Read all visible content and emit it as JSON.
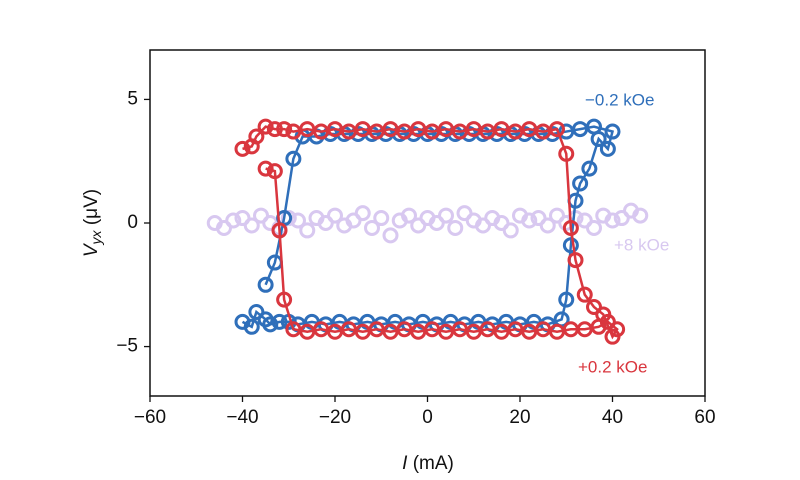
{
  "chart_data": {
    "type": "scatter",
    "x_label": {
      "symbol": "I",
      "unit": "(mA)"
    },
    "y_label": {
      "symbol": "V",
      "subscript": "yx",
      "unit": "(μV)"
    },
    "xlim": [
      -60,
      60
    ],
    "xticks": [
      {
        "value": -60,
        "label": "−60"
      },
      {
        "value": -40,
        "label": "−40"
      },
      {
        "value": -20,
        "label": "−20"
      },
      0,
      20,
      40,
      60
    ],
    "ylim": [
      -7,
      7
    ],
    "yticks": [
      {
        "value": -5,
        "label": "−5"
      },
      0,
      5
    ],
    "series": [
      {
        "name": "−0.2 kOe",
        "color": "#2f6fba",
        "line": true,
        "x": [
          -40,
          -38,
          -37,
          -35,
          -34,
          -32,
          -30,
          -28,
          -25,
          -22,
          -19,
          -16,
          -13,
          -10,
          -7,
          -4,
          -1,
          2,
          5,
          8,
          11,
          14,
          17,
          20,
          23,
          26,
          29,
          30,
          31,
          32,
          33,
          35,
          37,
          39,
          40,
          36,
          33,
          30,
          27,
          24,
          21,
          18,
          15,
          12,
          9,
          6,
          3,
          0,
          -3,
          -6,
          -9,
          -12,
          -15,
          -18,
          -21,
          -24,
          -27,
          -29,
          -31,
          -33,
          -35
        ],
        "values": [
          -4.0,
          -4.2,
          -3.6,
          -3.9,
          -4.1,
          -4.0,
          -4.0,
          -4.1,
          -4.0,
          -4.1,
          -4.0,
          -4.1,
          -4.0,
          -4.1,
          -4.0,
          -4.1,
          -4.0,
          -4.1,
          -4.0,
          -4.1,
          -4.0,
          -4.1,
          -4.0,
          -4.1,
          -4.0,
          -4.1,
          -3.9,
          -3.1,
          -0.9,
          0.9,
          1.6,
          2.2,
          3.4,
          3.0,
          3.7,
          3.9,
          3.8,
          3.7,
          3.6,
          3.6,
          3.6,
          3.6,
          3.6,
          3.6,
          3.6,
          3.6,
          3.6,
          3.6,
          3.6,
          3.6,
          3.6,
          3.6,
          3.6,
          3.6,
          3.6,
          3.5,
          3.5,
          2.6,
          0.2,
          -1.6,
          -2.5
        ]
      },
      {
        "name": "+0.2 kOe",
        "color": "#d9363e",
        "line": true,
        "x": [
          -40,
          -38,
          -37,
          -35,
          -33,
          -31,
          -29,
          -26,
          -23,
          -20,
          -17,
          -14,
          -11,
          -8,
          -5,
          -2,
          1,
          4,
          7,
          10,
          13,
          16,
          19,
          22,
          25,
          28,
          30,
          31,
          32,
          34,
          36,
          38,
          40,
          41,
          39,
          37,
          34,
          31,
          28,
          25,
          22,
          19,
          16,
          13,
          10,
          7,
          4,
          1,
          -2,
          -5,
          -8,
          -11,
          -14,
          -17,
          -20,
          -23,
          -26,
          -29,
          -31,
          -32,
          -33,
          -35
        ],
        "values": [
          3.0,
          3.1,
          3.5,
          3.9,
          3.8,
          3.8,
          3.7,
          3.8,
          3.7,
          3.8,
          3.7,
          3.8,
          3.7,
          3.8,
          3.7,
          3.8,
          3.7,
          3.8,
          3.7,
          3.8,
          3.7,
          3.8,
          3.7,
          3.8,
          3.7,
          3.8,
          2.8,
          -0.2,
          -1.5,
          -2.9,
          -3.4,
          -3.7,
          -4.6,
          -4.3,
          -4.0,
          -4.2,
          -4.3,
          -4.3,
          -4.4,
          -4.3,
          -4.4,
          -4.3,
          -4.4,
          -4.3,
          -4.4,
          -4.3,
          -4.4,
          -4.3,
          -4.4,
          -4.3,
          -4.4,
          -4.3,
          -4.4,
          -4.3,
          -4.4,
          -4.3,
          -4.4,
          -4.3,
          -3.1,
          -0.3,
          2.1,
          2.2
        ]
      },
      {
        "name": "+8 kOe",
        "color": "#d8c8f0",
        "line": false,
        "x": [
          -46,
          -44,
          -42,
          -40,
          -38,
          -36,
          -34,
          -32,
          -30,
          -28,
          -26,
          -24,
          -22,
          -20,
          -18,
          -16,
          -14,
          -12,
          -10,
          -8,
          -6,
          -4,
          -2,
          0,
          2,
          4,
          6,
          8,
          10,
          12,
          14,
          16,
          18,
          20,
          22,
          24,
          26,
          28,
          30,
          32,
          34,
          36,
          38,
          40,
          42,
          44,
          46
        ],
        "values": [
          0.0,
          -0.2,
          0.1,
          0.2,
          -0.1,
          0.3,
          0.0,
          -0.2,
          0.2,
          0.1,
          -0.3,
          0.2,
          0.0,
          0.3,
          -0.1,
          0.1,
          0.4,
          -0.2,
          0.2,
          -0.5,
          0.1,
          0.3,
          -0.1,
          0.2,
          0.0,
          0.3,
          -0.2,
          0.4,
          0.1,
          -0.1,
          0.2,
          0.0,
          -0.3,
          0.3,
          0.1,
          0.2,
          -0.1,
          0.3,
          0.0,
          0.2,
          0.1,
          -0.2,
          0.3,
          0.1,
          0.2,
          0.5,
          0.3
        ]
      }
    ]
  }
}
